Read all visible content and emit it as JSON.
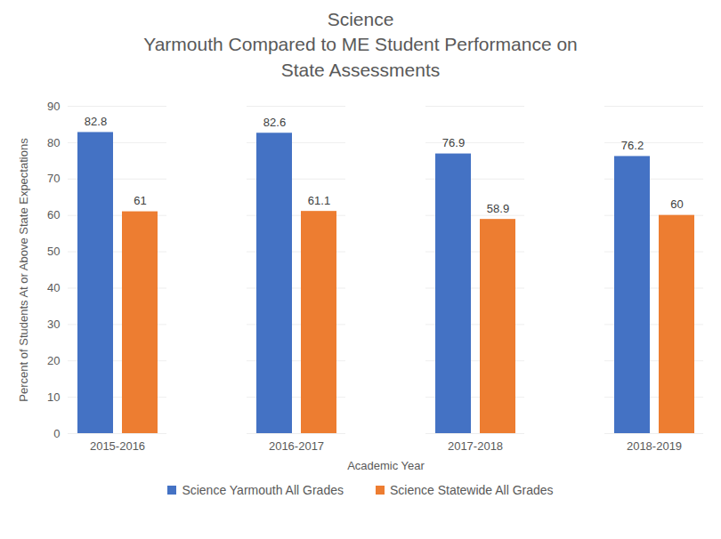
{
  "chart_data": {
    "type": "bar",
    "title": "Science",
    "subtitle": "Yarmouth Compared to ME Student Performance on State Assessments",
    "x_label": "Academic Year",
    "y_label": "Percent of Students At or Above State Expectations",
    "categories": [
      "2015-2016",
      "2016-2017",
      "2017-2018",
      "2018-2019"
    ],
    "series": [
      {
        "name": "Science Yarmouth All Grades",
        "color": "#4472c4",
        "values": [
          82.8,
          82.6,
          76.9,
          76.2
        ]
      },
      {
        "name": "Science Statewide All Grades",
        "color": "#ed7d31",
        "values": [
          61,
          61.1,
          58.9,
          60
        ]
      }
    ],
    "ylim": [
      0,
      90
    ],
    "yticks": [
      0,
      10,
      20,
      30,
      40,
      50,
      60,
      70,
      80,
      90
    ],
    "grid": true,
    "data_labels": true,
    "legend": "bottom"
  }
}
